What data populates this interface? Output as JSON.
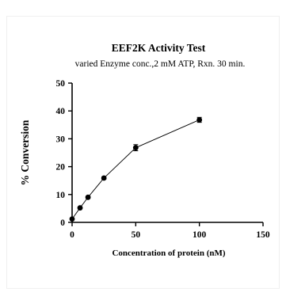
{
  "chart_data": {
    "type": "scatter",
    "title": "EEF2K Activity Test",
    "subtitle": "varied Enzyme conc.,2 mM ATP, Rxn. 30 min.",
    "xlabel": "Concentration of protein (nM)",
    "ylabel": "% Conversion",
    "xlim": [
      0,
      150
    ],
    "ylim": [
      0,
      50
    ],
    "xticks": [
      0,
      50,
      100,
      150
    ],
    "yticks": [
      0,
      10,
      20,
      30,
      40,
      50
    ],
    "grid": false,
    "connected": true,
    "colors": {
      "marker": "#000000",
      "line": "#000000"
    },
    "points": [
      {
        "x": 0,
        "y": 1.2,
        "err": 0.3
      },
      {
        "x": 6.25,
        "y": 5.2,
        "err": 0.3
      },
      {
        "x": 12.5,
        "y": 9.0,
        "err": 0.4
      },
      {
        "x": 25,
        "y": 15.9,
        "err": 0.4
      },
      {
        "x": 50,
        "y": 26.8,
        "err": 1.1
      },
      {
        "x": 100,
        "y": 36.8,
        "err": 0.9
      }
    ]
  }
}
